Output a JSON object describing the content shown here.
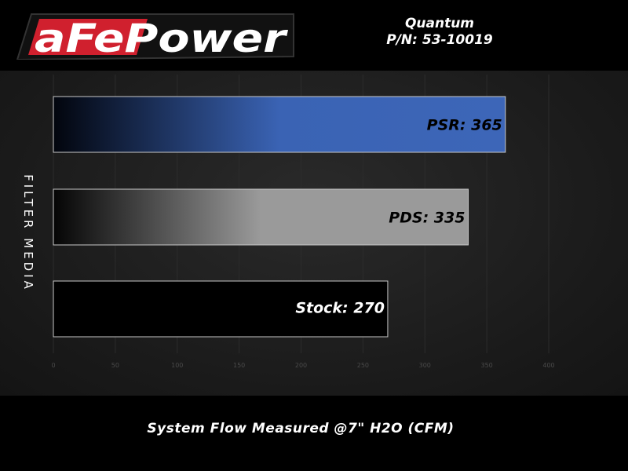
{
  "header": {
    "logo_text": "aFePower",
    "product_name": "Quantum",
    "part_number": "P/N: 53-10019"
  },
  "colors": {
    "logo_red": "#d0202e",
    "psr_blue": "#3d66b8",
    "pds_gray": "#9a9a9a",
    "stock_black": "#000000"
  },
  "chart_data": {
    "type": "bar",
    "orientation": "horizontal",
    "categories": [
      "PSR",
      "PDS",
      "Stock"
    ],
    "values": [
      365,
      335,
      270
    ],
    "data_labels": [
      "PSR: 365",
      "PDS: 335",
      "Stock: 270"
    ],
    "xlabel": "System Flow Measured @7\" H2O (CFM)",
    "ylabel": "FILTER MEDIA",
    "xlim": [
      0,
      400
    ],
    "xticks": [
      0,
      50,
      100,
      150,
      200,
      250,
      300,
      350,
      400
    ],
    "grid": true,
    "legend": "none"
  }
}
